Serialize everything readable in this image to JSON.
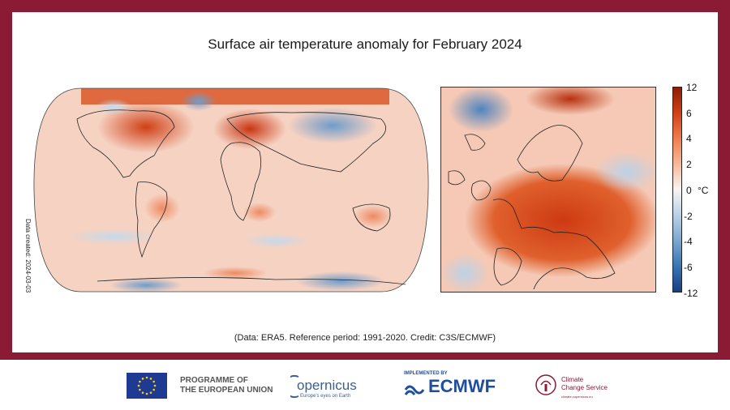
{
  "figure": {
    "title": "Surface air temperature anomaly for February 2024",
    "credit": "(Data: ERA5. Reference period: 1991-2020. Credit: C3S/ECMWF)",
    "date_created": "Data created: 2024-03-03"
  },
  "colorbar": {
    "ticks": [
      "12",
      "6",
      "4",
      "2",
      "0",
      "-2",
      "-4",
      "-6",
      "-12"
    ],
    "unit": "°C",
    "colors_top_to_bottom": [
      "#8c1b06",
      "#d04016",
      "#ef7d4f",
      "#f7b89a",
      "#f8f4f2",
      "#b9d1e6",
      "#7aa7d1",
      "#3a73b3",
      "#163f83"
    ]
  },
  "maps": {
    "global": {
      "land_outline": "black",
      "ocean_color": "#f6d2c2"
    },
    "europe": {
      "land_outline": "black"
    }
  },
  "footer": {
    "eu_line1": "PROGRAMME OF",
    "eu_line2": "THE EUROPEAN UNION",
    "copernicus_name": "opernicus",
    "copernicus_tagline": "Europe's eyes on Earth",
    "ecmwf_small": "IMPLEMENTED BY",
    "ecmwf_name": "ECMWF",
    "c3s_line1": "Climate",
    "c3s_line2": "Change Service",
    "c3s_sub": "climate.copernicus.eu"
  },
  "colors": {
    "frame": "#8b1a35",
    "ecmwf_blue": "#1f4e9c",
    "copernicus_blue": "#3c5f8f"
  }
}
